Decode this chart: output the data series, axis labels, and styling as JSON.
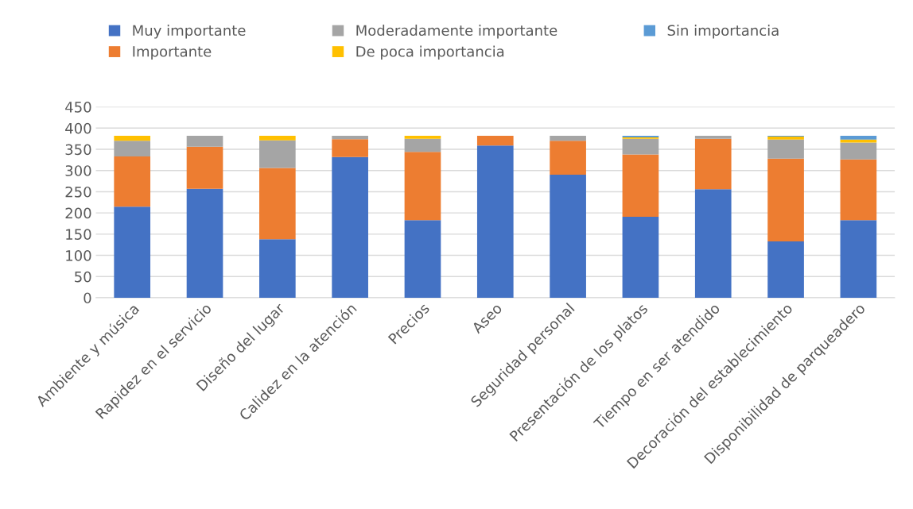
{
  "chart_data": {
    "type": "bar",
    "stacked": true,
    "categories": [
      "Ambiente y música",
      "Rapidez en el servicio",
      "Diseño del lugar",
      "Calidez en la atención",
      "Precios",
      "Aseo",
      "Seguridad personal",
      "Presentación de los platos",
      "Tiempo en ser atendido",
      "Decoración del establecimiento",
      "Disponibilidad de parqueadero"
    ],
    "series": [
      {
        "name": "Muy importante",
        "color": "#4472c4",
        "values": [
          215,
          257,
          138,
          332,
          183,
          359,
          290,
          191,
          256,
          133,
          183
        ]
      },
      {
        "name": "Importante",
        "color": "#ed7d31",
        "values": [
          118,
          99,
          168,
          42,
          161,
          23,
          80,
          147,
          119,
          195,
          143
        ]
      },
      {
        "name": "Moderadamente importante",
        "color": "#a5a5a5",
        "values": [
          37,
          26,
          65,
          8,
          31,
          null,
          12,
          37,
          7,
          45,
          40
        ]
      },
      {
        "name": "De poca importancia",
        "color": "#ffc000",
        "values": [
          12,
          null,
          11,
          null,
          7,
          null,
          null,
          3,
          null,
          7,
          7
        ]
      },
      {
        "name": "Sin importancia",
        "color": "#5b9bd5",
        "values": [
          null,
          null,
          null,
          null,
          null,
          null,
          null,
          4,
          null,
          2,
          9
        ]
      }
    ],
    "ylim": [
      0,
      450
    ],
    "yticks": [
      0,
      50,
      100,
      150,
      200,
      250,
      300,
      350,
      400,
      450
    ],
    "grid": "y",
    "legend": "top"
  }
}
